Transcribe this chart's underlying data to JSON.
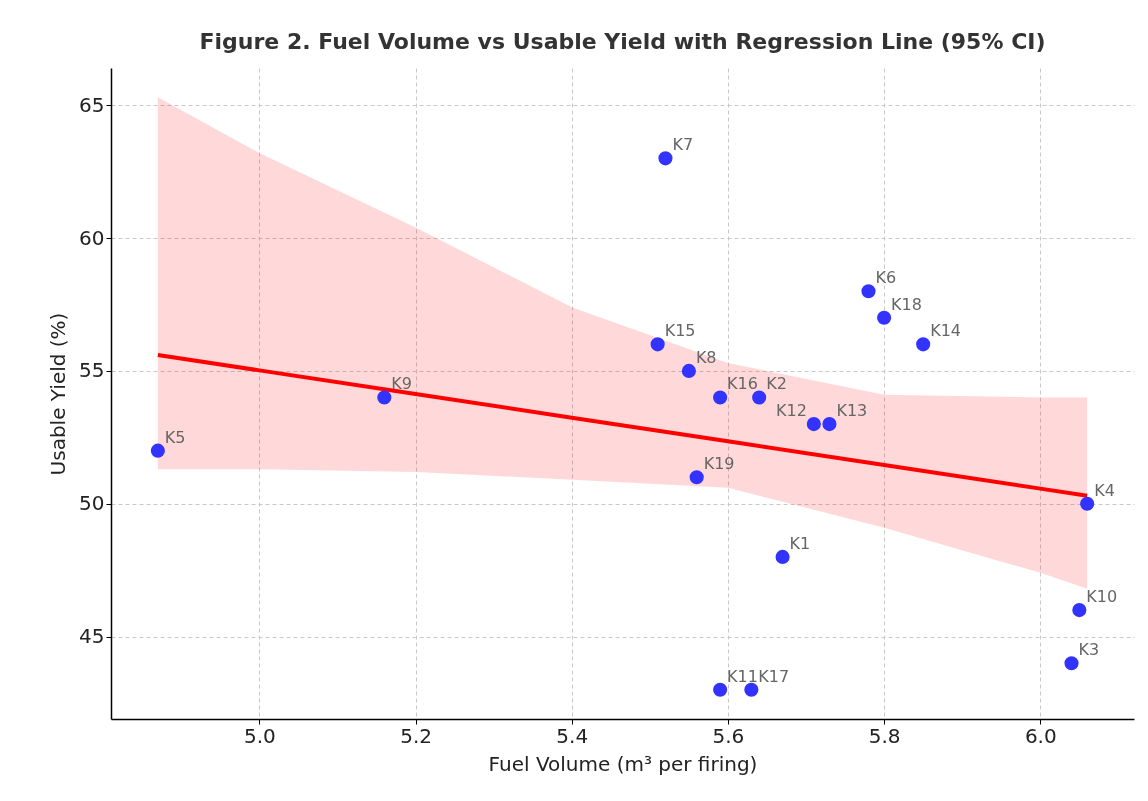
{
  "chart_data": {
    "type": "scatter",
    "title": "Figure 2. Fuel Volume vs Usable Yield with Regression Line (95% CI)",
    "xlabel": "Fuel Volume (m³ per firing)",
    "ylabel": "Usable Yield (%)",
    "xlim": [
      4.81,
      6.12
    ],
    "xticks": [
      {
        "value": 5.0,
        "label": "5.0"
      },
      {
        "value": 5.2,
        "label": "5.2"
      },
      {
        "value": 5.4,
        "label": "5.4"
      },
      {
        "value": 5.6,
        "label": "5.6"
      },
      {
        "value": 5.8,
        "label": "5.8"
      },
      {
        "value": 6.0,
        "label": "6.0"
      }
    ],
    "ylim": [
      41.9,
      66.4
    ],
    "yticks": [
      45,
      50,
      55,
      60,
      65
    ],
    "grid": true,
    "series": [
      {
        "type": "line",
        "color": "#ff0000",
        "x": [
          4.87,
          5.0,
          5.2,
          5.4,
          5.6,
          5.8,
          6.0,
          6.06
        ],
        "values": [
          55.6,
          55.02,
          54.13,
          53.24,
          52.35,
          51.46,
          50.57,
          50.3
        ],
        "lower": [
          51.3,
          51.3,
          51.2,
          50.9,
          50.6,
          49.1,
          47.4,
          46.8
        ],
        "upper": [
          65.3,
          63.2,
          60.4,
          57.4,
          55.3,
          54.1,
          54.0,
          54.0
        ]
      },
      {
        "marker": "circle",
        "color": "#3333ff",
        "x": [
          4.87,
          5.16,
          5.52,
          5.51,
          5.55,
          5.59,
          5.64,
          5.71,
          5.73,
          5.56,
          5.67,
          5.78,
          5.8,
          5.85,
          6.06,
          6.05,
          6.04,
          5.59,
          5.63
        ],
        "values": [
          52,
          54,
          63,
          56,
          55,
          54,
          54,
          53,
          53,
          51,
          48,
          58,
          57,
          56,
          50,
          46,
          44,
          43,
          43
        ]
      }
    ],
    "annotations": [
      {
        "text": "K5",
        "x": 4.87,
        "y": 52
      },
      {
        "text": "K9",
        "x": 5.16,
        "y": 54
      },
      {
        "text": "K7",
        "x": 5.52,
        "y": 63
      },
      {
        "text": "K15",
        "x": 5.51,
        "y": 56
      },
      {
        "text": "K8",
        "x": 5.55,
        "y": 55
      },
      {
        "text": "K16",
        "x": 5.59,
        "y": 54
      },
      {
        "text": "K2",
        "x": 5.64,
        "y": 54
      },
      {
        "text": "K12",
        "x": 5.71,
        "y": 53
      },
      {
        "text": "K13",
        "x": 5.73,
        "y": 53
      },
      {
        "text": "K19",
        "x": 5.56,
        "y": 51
      },
      {
        "text": "K1",
        "x": 5.67,
        "y": 48
      },
      {
        "text": "K6",
        "x": 5.78,
        "y": 58
      },
      {
        "text": "K18",
        "x": 5.8,
        "y": 57
      },
      {
        "text": "K14",
        "x": 5.85,
        "y": 56
      },
      {
        "text": "K4",
        "x": 6.06,
        "y": 50
      },
      {
        "text": "K10",
        "x": 6.05,
        "y": 46
      },
      {
        "text": "K3",
        "x": 6.04,
        "y": 44
      },
      {
        "text": "K11",
        "x": 5.59,
        "y": 43
      },
      {
        "text": "K17",
        "x": 5.63,
        "y": 43
      }
    ]
  }
}
